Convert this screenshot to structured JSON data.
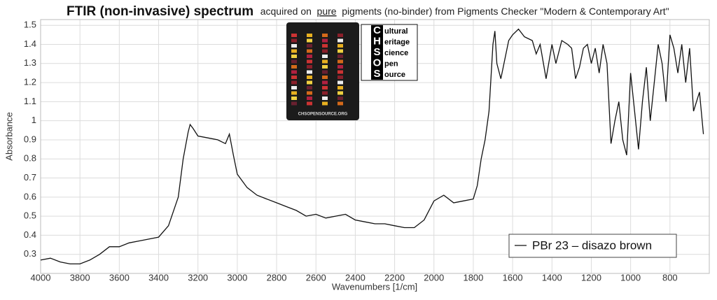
{
  "chart_data": {
    "type": "line",
    "title": "FTIR (non-invasive) spectrum",
    "subtitle": [
      "acquired on",
      "pure",
      "pigments (no-binder) from Pigments Checker \"Modern & Contemporary Art\""
    ],
    "xlabel": "Wavenumbers [1/cm]",
    "ylabel": "Absorbance",
    "logo": {
      "letters": [
        "C",
        "H",
        "S",
        "O",
        "S"
      ],
      "words": [
        "ultural",
        "eritage",
        "cience",
        "pen",
        "ource"
      ],
      "card": "CHSOPENSOURCE.ORG"
    },
    "x": [
      4000,
      3950,
      3900,
      3850,
      3800,
      3750,
      3700,
      3650,
      3600,
      3550,
      3500,
      3450,
      3400,
      3350,
      3300,
      3275,
      3250,
      3240,
      3225,
      3200,
      3150,
      3100,
      3060,
      3040,
      3020,
      3000,
      2950,
      2900,
      2850,
      2800,
      2750,
      2700,
      2650,
      2600,
      2550,
      2500,
      2450,
      2400,
      2350,
      2300,
      2250,
      2200,
      2150,
      2100,
      2050,
      2000,
      1950,
      1900,
      1850,
      1800,
      1780,
      1760,
      1740,
      1720,
      1700,
      1690,
      1680,
      1660,
      1640,
      1620,
      1600,
      1570,
      1540,
      1500,
      1480,
      1460,
      1430,
      1400,
      1380,
      1350,
      1320,
      1300,
      1280,
      1260,
      1240,
      1220,
      1200,
      1180,
      1160,
      1140,
      1120,
      1100,
      1080,
      1060,
      1040,
      1020,
      1000,
      980,
      960,
      940,
      920,
      900,
      880,
      860,
      840,
      820,
      800,
      780,
      760,
      740,
      720,
      700,
      680,
      650,
      630
    ],
    "series": [
      {
        "name": "PBr 23 – disazo brown",
        "color": "#111111",
        "values": [
          0.27,
          0.28,
          0.26,
          0.25,
          0.25,
          0.27,
          0.3,
          0.34,
          0.34,
          0.36,
          0.37,
          0.38,
          0.39,
          0.45,
          0.6,
          0.8,
          0.94,
          0.98,
          0.96,
          0.92,
          0.91,
          0.9,
          0.88,
          0.93,
          0.82,
          0.72,
          0.65,
          0.61,
          0.59,
          0.57,
          0.55,
          0.53,
          0.5,
          0.51,
          0.49,
          0.5,
          0.51,
          0.48,
          0.47,
          0.46,
          0.46,
          0.45,
          0.44,
          0.44,
          0.48,
          0.58,
          0.61,
          0.57,
          0.58,
          0.59,
          0.66,
          0.8,
          0.9,
          1.05,
          1.4,
          1.47,
          1.3,
          1.22,
          1.32,
          1.42,
          1.45,
          1.48,
          1.44,
          1.42,
          1.35,
          1.4,
          1.22,
          1.4,
          1.3,
          1.42,
          1.4,
          1.38,
          1.22,
          1.28,
          1.38,
          1.4,
          1.3,
          1.38,
          1.25,
          1.4,
          1.3,
          0.88,
          1.0,
          1.1,
          0.9,
          0.82,
          1.25,
          1.05,
          0.85,
          1.1,
          1.28,
          1.0,
          1.2,
          1.4,
          1.3,
          1.1,
          1.45,
          1.38,
          1.25,
          1.4,
          1.2,
          1.38,
          1.05,
          1.15,
          0.93
        ]
      }
    ],
    "xlim": [
      4000,
      600
    ],
    "xticks": [
      4000,
      3800,
      3600,
      3400,
      3200,
      3000,
      2800,
      2600,
      2400,
      2200,
      2000,
      1800,
      1600,
      1400,
      1200,
      1000,
      800
    ],
    "ylim": [
      0.2,
      1.53
    ],
    "yticks": [
      0.3,
      0.4,
      0.5,
      0.6,
      0.7,
      0.8,
      0.9,
      1,
      1.1,
      1.2,
      1.3,
      1.4,
      1.5
    ],
    "grid": true,
    "legend": "lower right"
  }
}
